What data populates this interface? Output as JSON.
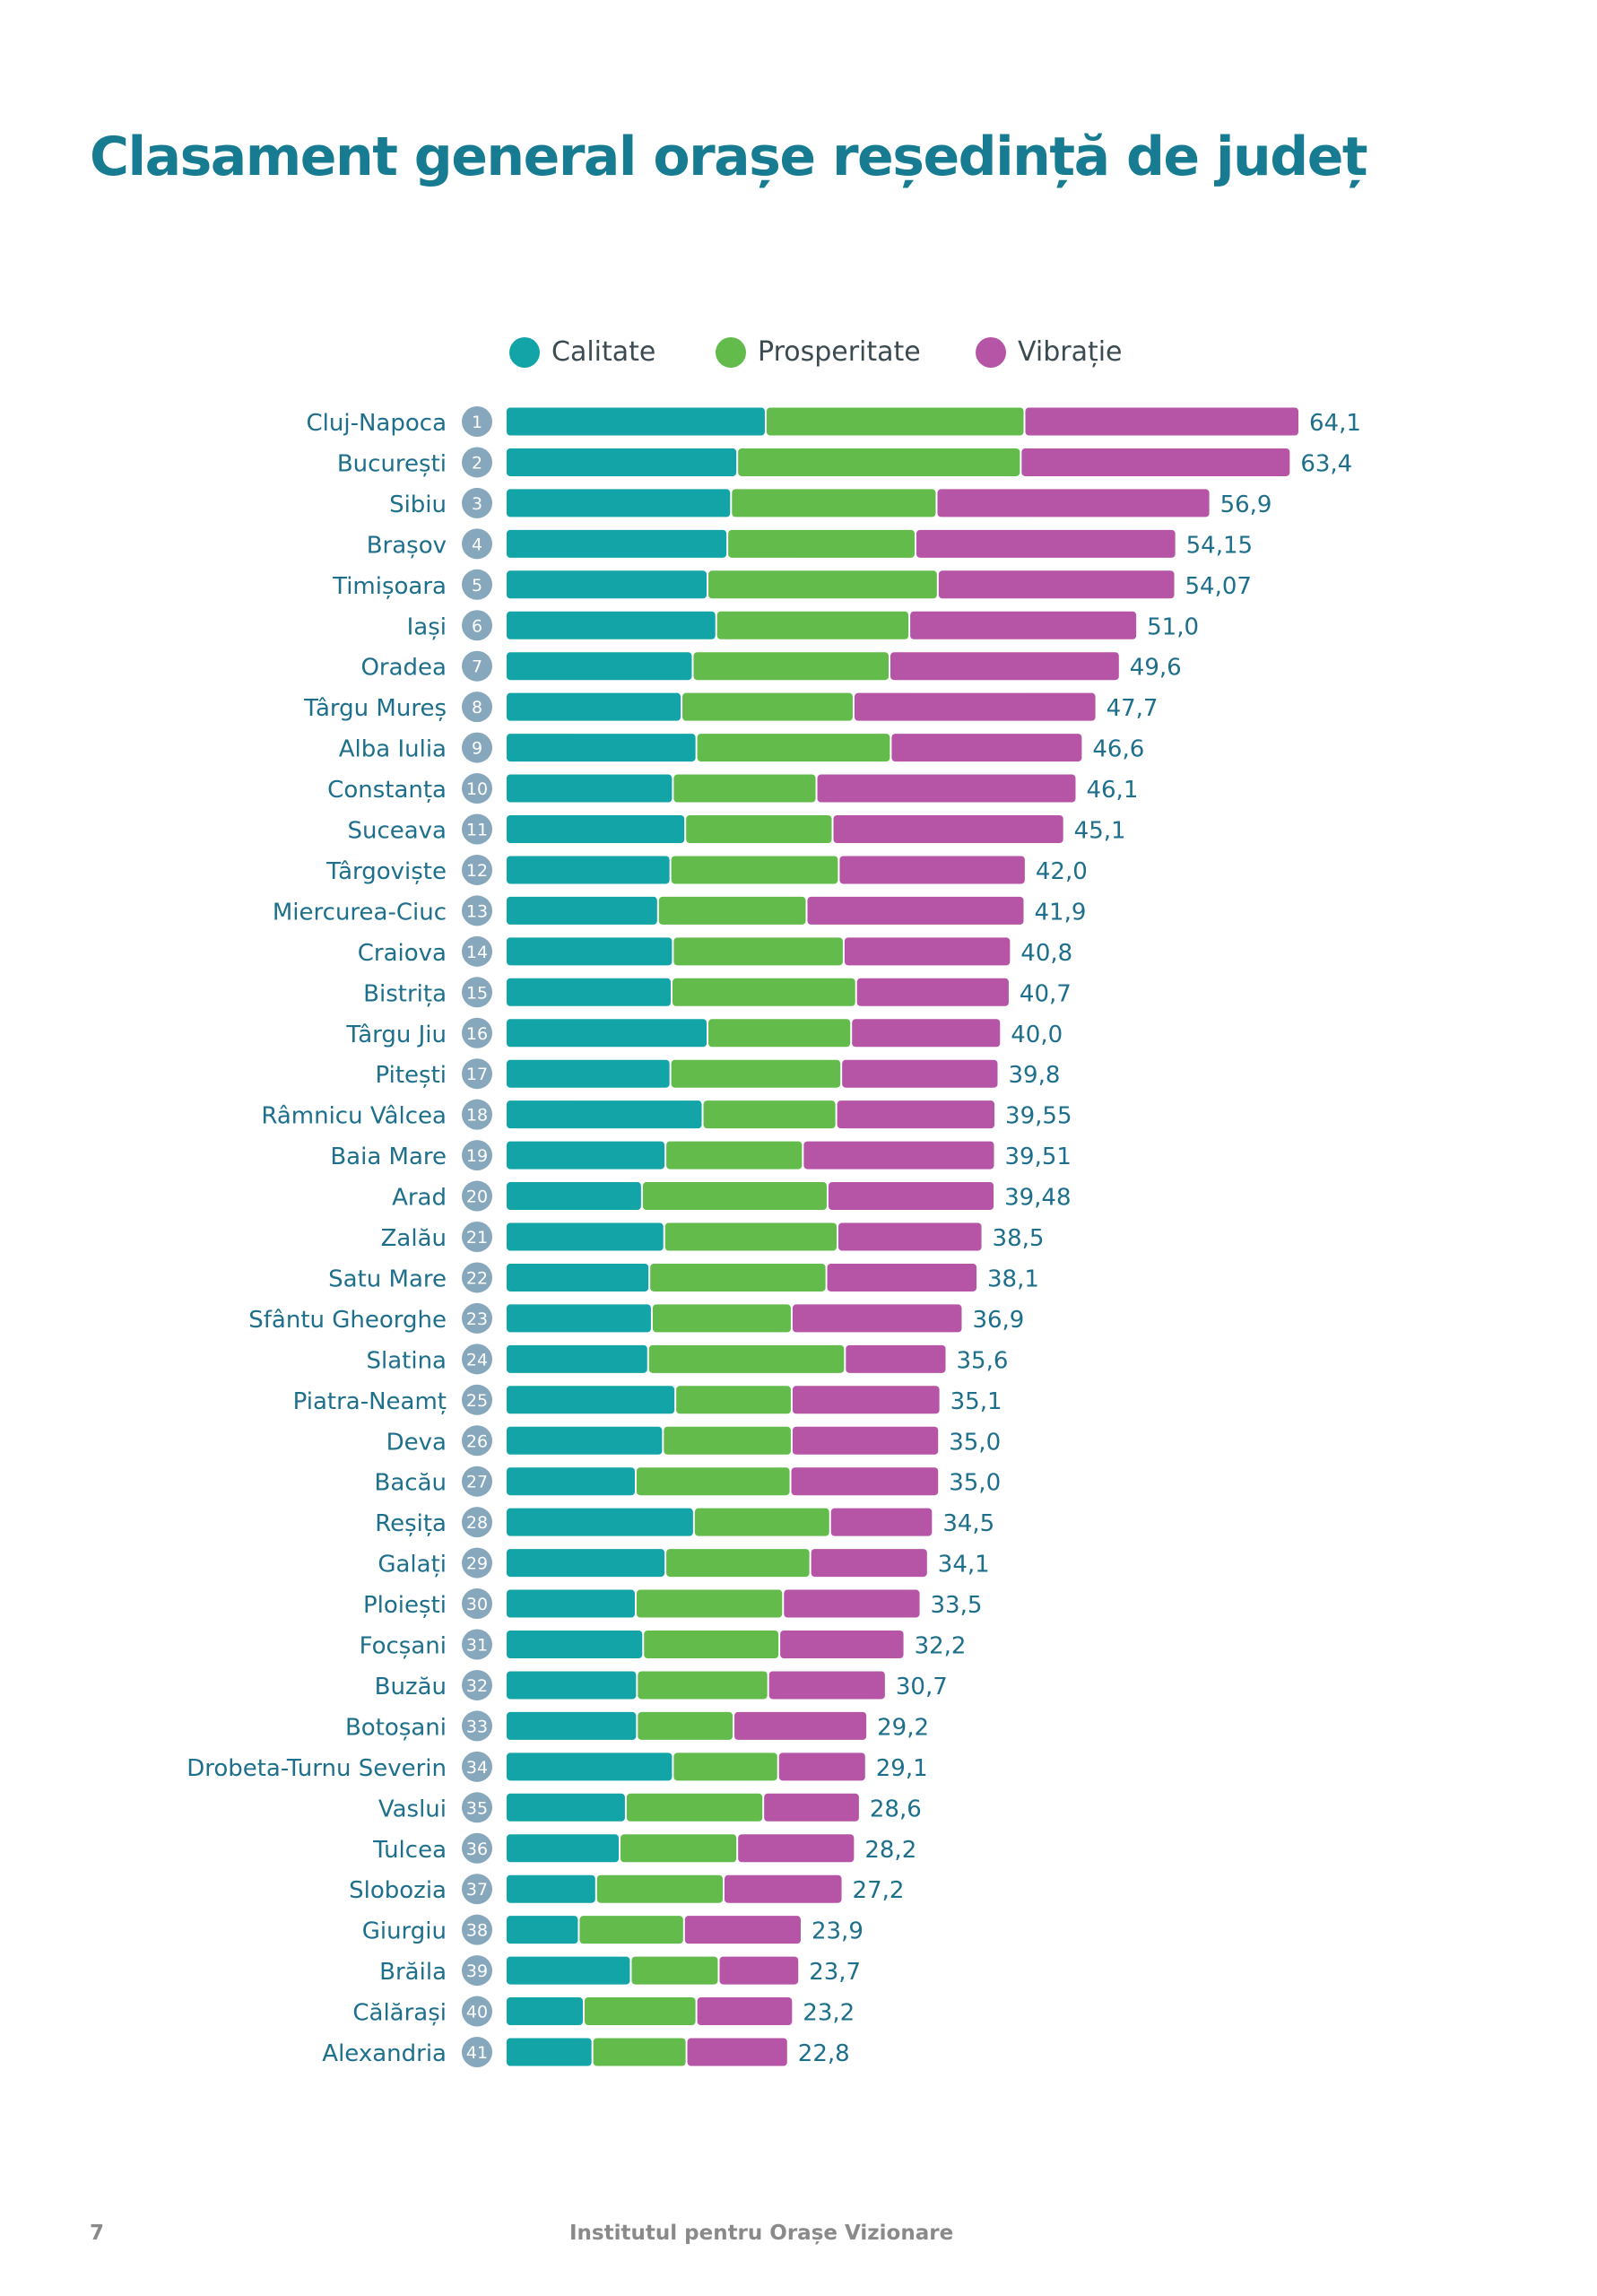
{
  "page": {
    "title": "Clasament general orașe reședință de județ",
    "page_number": "7",
    "organization": "Institutul pentru Orașe Vizionare"
  },
  "colors": {
    "title": "#177c91",
    "calitate": "#12a4a6",
    "prosperitate": "#63bb4c",
    "vibratie": "#b654a6",
    "labels": "#1d6f8c",
    "rank_badge": "#87a7bd"
  },
  "chart_data": {
    "type": "bar",
    "orientation": "horizontal",
    "stacked": true,
    "legend": [
      "Calitate",
      "Prosperitate",
      "Vibrație"
    ],
    "legend_position": "top",
    "grid": false,
    "xlim": [
      0,
      64.1
    ],
    "rows": [
      {
        "rank": "1",
        "city": "Cluj-Napoca",
        "total": 64.1,
        "label": "64,1",
        "calitate": 21.0,
        "prosperitate": 20.9,
        "vibratie": 22.2
      },
      {
        "rank": "2",
        "city": "București",
        "total": 63.4,
        "label": "63,4",
        "calitate": 18.7,
        "prosperitate": 22.9,
        "vibratie": 21.8
      },
      {
        "rank": "3",
        "city": "Sibiu",
        "total": 56.9,
        "label": "56,9",
        "calitate": 18.2,
        "prosperitate": 16.6,
        "vibratie": 22.1
      },
      {
        "rank": "4",
        "city": "Brașov",
        "total": 54.15,
        "label": "54,15",
        "calitate": 17.9,
        "prosperitate": 15.2,
        "vibratie": 21.05
      },
      {
        "rank": "5",
        "city": "Timișoara",
        "total": 54.07,
        "label": "54,07",
        "calitate": 16.3,
        "prosperitate": 18.6,
        "vibratie": 19.17
      },
      {
        "rank": "6",
        "city": "Iași",
        "total": 51.0,
        "label": "51,0",
        "calitate": 17.0,
        "prosperitate": 15.6,
        "vibratie": 18.4
      },
      {
        "rank": "7",
        "city": "Oradea",
        "total": 49.6,
        "label": "49,6",
        "calitate": 15.1,
        "prosperitate": 15.9,
        "vibratie": 18.6
      },
      {
        "rank": "8",
        "city": "Târgu Mureș",
        "total": 47.7,
        "label": "47,7",
        "calitate": 14.2,
        "prosperitate": 13.9,
        "vibratie": 19.6
      },
      {
        "rank": "9",
        "city": "Alba Iulia",
        "total": 46.6,
        "label": "46,6",
        "calitate": 15.4,
        "prosperitate": 15.7,
        "vibratie": 15.5
      },
      {
        "rank": "10",
        "city": "Constanța",
        "total": 46.1,
        "label": "46,1",
        "calitate": 13.5,
        "prosperitate": 11.6,
        "vibratie": 21.0
      },
      {
        "rank": "11",
        "city": "Suceava",
        "total": 45.1,
        "label": "45,1",
        "calitate": 14.5,
        "prosperitate": 11.9,
        "vibratie": 18.7
      },
      {
        "rank": "12",
        "city": "Târgoviște",
        "total": 42.0,
        "label": "42,0",
        "calitate": 13.3,
        "prosperitate": 13.6,
        "vibratie": 15.1
      },
      {
        "rank": "13",
        "city": "Miercurea-Ciuc",
        "total": 41.9,
        "label": "41,9",
        "calitate": 12.3,
        "prosperitate": 12.0,
        "vibratie": 17.6
      },
      {
        "rank": "14",
        "city": "Craiova",
        "total": 40.8,
        "label": "40,8",
        "calitate": 13.5,
        "prosperitate": 13.8,
        "vibratie": 13.5
      },
      {
        "rank": "15",
        "city": "Bistrița",
        "total": 40.7,
        "label": "40,7",
        "calitate": 13.4,
        "prosperitate": 14.9,
        "vibratie": 12.4
      },
      {
        "rank": "16",
        "city": "Târgu Jiu",
        "total": 40.0,
        "label": "40,0",
        "calitate": 16.3,
        "prosperitate": 11.6,
        "vibratie": 12.1
      },
      {
        "rank": "17",
        "city": "Pitești",
        "total": 39.8,
        "label": "39,8",
        "calitate": 13.3,
        "prosperitate": 13.8,
        "vibratie": 12.7
      },
      {
        "rank": "18",
        "city": "Râmnicu Vâlcea",
        "total": 39.55,
        "label": "39,55",
        "calitate": 15.9,
        "prosperitate": 10.8,
        "vibratie": 12.85
      },
      {
        "rank": "19",
        "city": "Baia Mare",
        "total": 39.51,
        "label": "39,51",
        "calitate": 12.9,
        "prosperitate": 11.1,
        "vibratie": 15.51
      },
      {
        "rank": "20",
        "city": "Arad",
        "total": 39.48,
        "label": "39,48",
        "calitate": 11.0,
        "prosperitate": 15.0,
        "vibratie": 13.48
      },
      {
        "rank": "21",
        "city": "Zalău",
        "total": 38.5,
        "label": "38,5",
        "calitate": 12.8,
        "prosperitate": 14.0,
        "vibratie": 11.7
      },
      {
        "rank": "22",
        "city": "Satu Mare",
        "total": 38.1,
        "label": "38,1",
        "calitate": 11.6,
        "prosperitate": 14.3,
        "vibratie": 12.2
      },
      {
        "rank": "23",
        "city": "Sfântu Gheorghe",
        "total": 36.9,
        "label": "36,9",
        "calitate": 11.8,
        "prosperitate": 11.3,
        "vibratie": 13.8
      },
      {
        "rank": "24",
        "city": "Slatina",
        "total": 35.6,
        "label": "35,6",
        "calitate": 11.5,
        "prosperitate": 15.9,
        "vibratie": 8.2
      },
      {
        "rank": "25",
        "city": "Piatra-Neamț",
        "total": 35.1,
        "label": "35,1",
        "calitate": 13.7,
        "prosperitate": 9.4,
        "vibratie": 12.0
      },
      {
        "rank": "26",
        "city": "Deva",
        "total": 35.0,
        "label": "35,0",
        "calitate": 12.7,
        "prosperitate": 10.4,
        "vibratie": 11.9
      },
      {
        "rank": "27",
        "city": "Bacău",
        "total": 35.0,
        "label": "35,0",
        "calitate": 10.5,
        "prosperitate": 12.5,
        "vibratie": 12.0
      },
      {
        "rank": "28",
        "city": "Reșița",
        "total": 34.5,
        "label": "34,5",
        "calitate": 15.2,
        "prosperitate": 11.0,
        "vibratie": 8.3
      },
      {
        "rank": "29",
        "city": "Galați",
        "total": 34.1,
        "label": "34,1",
        "calitate": 12.9,
        "prosperitate": 11.7,
        "vibratie": 9.5
      },
      {
        "rank": "30",
        "city": "Ploiești",
        "total": 33.5,
        "label": "33,5",
        "calitate": 10.5,
        "prosperitate": 11.9,
        "vibratie": 11.1
      },
      {
        "rank": "31",
        "city": "Focșani",
        "total": 32.2,
        "label": "32,2",
        "calitate": 11.1,
        "prosperitate": 11.0,
        "vibratie": 10.1
      },
      {
        "rank": "32",
        "city": "Buzău",
        "total": 30.7,
        "label": "30,7",
        "calitate": 10.6,
        "prosperitate": 10.6,
        "vibratie": 9.5
      },
      {
        "rank": "33",
        "city": "Botoșani",
        "total": 29.2,
        "label": "29,2",
        "calitate": 10.6,
        "prosperitate": 7.8,
        "vibratie": 10.8
      },
      {
        "rank": "34",
        "city": "Drobeta-Turnu Severin",
        "total": 29.1,
        "label": "29,1",
        "calitate": 13.5,
        "prosperitate": 8.5,
        "vibratie": 7.1
      },
      {
        "rank": "35",
        "city": "Vaslui",
        "total": 28.6,
        "label": "28,6",
        "calitate": 9.7,
        "prosperitate": 11.1,
        "vibratie": 7.8
      },
      {
        "rank": "36",
        "city": "Tulcea",
        "total": 28.2,
        "label": "28,2",
        "calitate": 9.2,
        "prosperitate": 9.5,
        "vibratie": 9.5
      },
      {
        "rank": "37",
        "city": "Slobozia",
        "total": 27.2,
        "label": "27,2",
        "calitate": 7.3,
        "prosperitate": 10.3,
        "vibratie": 9.6
      },
      {
        "rank": "38",
        "city": "Giurgiu",
        "total": 23.9,
        "label": "23,9",
        "calitate": 5.9,
        "prosperitate": 8.5,
        "vibratie": 9.5
      },
      {
        "rank": "39",
        "city": "Brăila",
        "total": 23.7,
        "label": "23,7",
        "calitate": 10.1,
        "prosperitate": 7.1,
        "vibratie": 6.5
      },
      {
        "rank": "40",
        "city": "Călărași",
        "total": 23.2,
        "label": "23,2",
        "calitate": 6.3,
        "prosperitate": 9.1,
        "vibratie": 7.8
      },
      {
        "rank": "41",
        "city": "Alexandria",
        "total": 22.8,
        "label": "22,8",
        "calitate": 7.0,
        "prosperitate": 7.6,
        "vibratie": 8.2
      }
    ]
  }
}
